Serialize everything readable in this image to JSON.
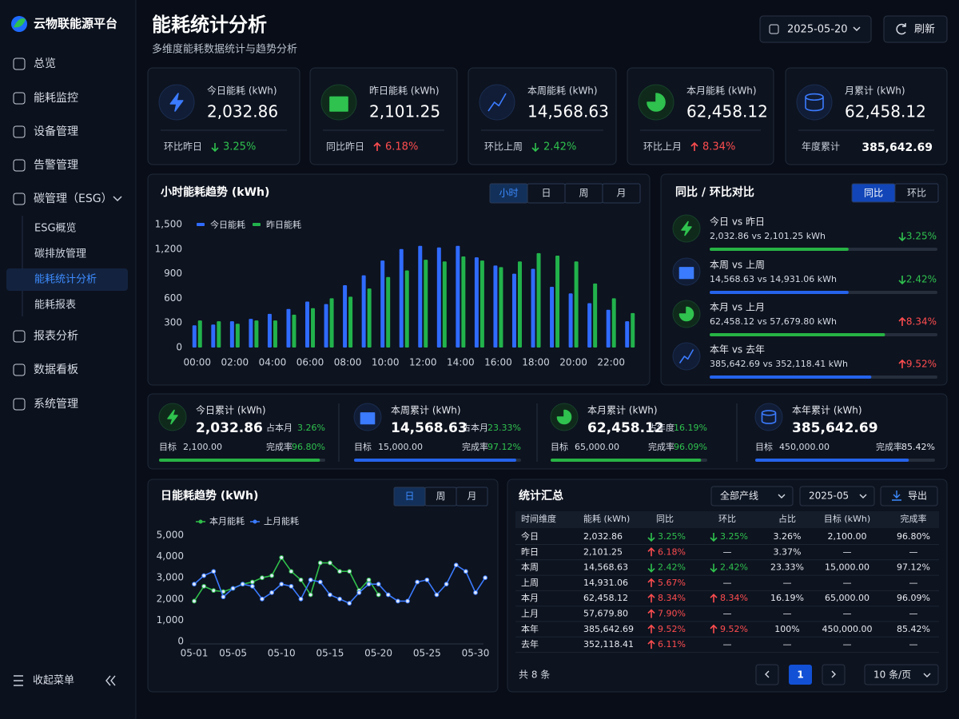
{
  "sidebar": {
    "brand": "云物联能源平台",
    "menu": [
      "总览",
      "能耗监控",
      "设备管理",
      "告警管理",
      "碳管理（ESG）"
    ],
    "submenu": [
      "ESG概览",
      "碳排放管理",
      "能耗统计分析",
      "能耗报表"
    ],
    "menu2": [
      "报表分析",
      "数据看板",
      "系统管理"
    ],
    "collapse": "收起菜单"
  },
  "header": {
    "title": "能耗统计分析",
    "subtitle": "多维度能耗数据统计与趋势分析",
    "date": "2025-05-20",
    "refresh": "刷新"
  },
  "kpis": [
    {
      "label": "今日能耗 (kWh)",
      "value": "2,032.86",
      "compare_label": "环比昨日",
      "change": "3.25%",
      "direction": "down"
    },
    {
      "label": "昨日能耗 (kWh)",
      "value": "2,101.25",
      "compare_label": "同比昨日",
      "change": "6.18%",
      "direction": "up"
    },
    {
      "label": "本周能耗 (kWh)",
      "value": "14,568.63",
      "compare_label": "环比上周",
      "change": "2.42%",
      "direction": "down"
    },
    {
      "label": "本月能耗 (kWh)",
      "value": "62,458.12",
      "compare_label": "环比上月",
      "change": "8.34%",
      "direction": "up"
    },
    {
      "label": "月累计 (kWh)",
      "value": "62,458.12",
      "compare_label": "年度累计",
      "total": "385,642.69"
    }
  ],
  "comparison": {
    "title": "同比 / 环比对比",
    "tabs": [
      "同比",
      "环比"
    ],
    "items": [
      {
        "label": "今日 vs 昨日",
        "detail": "2,032.86 vs 2,101.25 kWh",
        "change": "3.25%",
        "direction": "down",
        "progress": 61,
        "color": "#27b344"
      },
      {
        "label": "本周 vs 上周",
        "detail": "14,568.63 vs 14,931.06 kWh",
        "change": "2.42%",
        "direction": "down",
        "progress": 61,
        "color": "#2563eb"
      },
      {
        "label": "本月 vs 上月",
        "detail": "62,458.12 vs 57,679.80 kWh",
        "change": "8.34%",
        "direction": "up",
        "progress": 77,
        "color": "#27b344"
      },
      {
        "label": "本年 vs 去年",
        "detail": "385,642.69 vs 352,118.41 kWh",
        "change": "9.52%",
        "direction": "up",
        "progress": 71,
        "color": "#2563eb"
      }
    ]
  },
  "targets": [
    {
      "label": "今日累计 (kWh)",
      "value": "2,032.86",
      "share_label": "占本月",
      "share": "3.26%",
      "target_label": "目标",
      "target": "2,100.00",
      "rate_label": "完成率",
      "rate": "96.80%",
      "progress": 96.8,
      "color": "#27b344",
      "rate_color": "#2fc24e"
    },
    {
      "label": "本周累计 (kWh)",
      "value": "14,568.63",
      "share_label": "占本月",
      "share": "23.33%",
      "target_label": "目标",
      "target": "15,000.00",
      "rate_label": "完成率",
      "rate": "97.12%",
      "progress": 97.12,
      "color": "#2563eb",
      "rate_color": "#2fc24e"
    },
    {
      "label": "本月累计 (kWh)",
      "value": "62,458.12",
      "share_label": "占年度",
      "share": "16.19%",
      "target_label": "目标",
      "target": "65,000.00",
      "rate_label": "完成率",
      "rate": "96.09%",
      "progress": 96.09,
      "color": "#27b344",
      "rate_color": "#2fc24e"
    },
    {
      "label": "本年累计 (kWh)",
      "value": "385,642.69",
      "target_label": "目标",
      "target": "450,000.00",
      "rate_label": "完成率",
      "rate": "85.42%",
      "progress": 85.42,
      "color": "#2563eb",
      "rate_color": "#e6e9ef"
    }
  ],
  "table": {
    "title": "统计汇总",
    "filters": [
      "全部产线",
      "2025-05"
    ],
    "export": "导出",
    "columns": [
      "时间维度",
      "能耗 (kWh)",
      "同比",
      "环比",
      "占比",
      "目标 (kWh)",
      "完成率"
    ],
    "rows": [
      [
        "今日",
        "2,032.86",
        {
          "text": "3.25%",
          "direction": "down"
        },
        {
          "text": "3.25%",
          "direction": "down"
        },
        "3.26%",
        "2,100.00",
        "96.80%"
      ],
      [
        "昨日",
        "2,101.25",
        {
          "text": "6.18%",
          "direction": "up"
        },
        "—",
        "3.37%",
        "—",
        "—"
      ],
      [
        "本周",
        "14,568.63",
        {
          "text": "2.42%",
          "direction": "down"
        },
        {
          "text": "2.42%",
          "direction": "down"
        },
        "23.33%",
        "15,000.00",
        "97.12%"
      ],
      [
        "上周",
        "14,931.06",
        {
          "text": "5.67%",
          "direction": "up"
        },
        "—",
        "—",
        "—",
        "—"
      ],
      [
        "本月",
        "62,458.12",
        {
          "text": "8.34%",
          "direction": "up"
        },
        {
          "text": "8.34%",
          "direction": "up"
        },
        "16.19%",
        "65,000.00",
        "96.09%"
      ],
      [
        "上月",
        "57,679.80",
        {
          "text": "7.90%",
          "direction": "up"
        },
        "—",
        "—",
        "—",
        "—"
      ],
      [
        "本年",
        "385,642.69",
        {
          "text": "9.52%",
          "direction": "up"
        },
        {
          "text": "9.52%",
          "direction": "up"
        },
        "100%",
        "450,000.00",
        "85.42%"
      ],
      [
        "去年",
        "352,118.41",
        {
          "text": "6.11%",
          "direction": "up"
        },
        "—",
        "—",
        "—",
        "—"
      ]
    ],
    "total": "共 8 条",
    "page": "1",
    "page_size": "10 条/页"
  },
  "chart_data": [
    {
      "type": "bar",
      "title": "小时能耗趋势 (kWh)",
      "tabs": [
        "小时",
        "日",
        "周",
        "月"
      ],
      "categories": [
        "00:00",
        null,
        "02:00",
        null,
        "04:00",
        null,
        "06:00",
        null,
        "08:00",
        null,
        "10:00",
        null,
        "12:00",
        null,
        "14:00",
        null,
        "16:00",
        null,
        "18:00",
        null,
        "20:00",
        null,
        "22:00",
        null
      ],
      "series": [
        {
          "name": "今日能耗",
          "color": "#2f6bff",
          "values": [
            270,
            280,
            320,
            350,
            410,
            470,
            560,
            530,
            760,
            880,
            1060,
            1200,
            1240,
            1220,
            1240,
            1100,
            1000,
            900,
            960,
            740,
            660,
            540,
            460,
            320
          ]
        },
        {
          "name": "昨日能耗",
          "color": "#22b24c",
          "values": [
            330,
            320,
            290,
            330,
            330,
            400,
            480,
            600,
            620,
            720,
            860,
            940,
            1070,
            1050,
            1110,
            1060,
            980,
            1050,
            1150,
            1120,
            1050,
            780,
            600,
            420
          ]
        }
      ],
      "ylim": [
        0,
        1500
      ],
      "yticks": [
        0,
        300,
        600,
        900,
        {
          "value": 1200,
          "label": "1,200"
        },
        {
          "value": 1500,
          "label": "1,500"
        }
      ]
    },
    {
      "type": "line",
      "title": "日能耗趋势 (kWh)",
      "tabs": [
        "日",
        "周",
        "月"
      ],
      "categories": [
        "05-01",
        null,
        null,
        null,
        "05-05",
        null,
        null,
        null,
        null,
        "05-10",
        null,
        null,
        null,
        null,
        "05-15",
        null,
        null,
        null,
        null,
        "05-20",
        null,
        null,
        null,
        null,
        "05-25",
        null,
        null,
        null,
        null,
        "05-30",
        null
      ],
      "series": [
        {
          "name": "本月能耗",
          "color": "#2fbf4a",
          "values": [
            1900,
            2600,
            2400,
            2350,
            2500,
            2700,
            2800,
            3000,
            3100,
            3950,
            3300,
            2900,
            2200,
            3700,
            3700,
            3300,
            3300,
            2400,
            2900,
            2200,
            null,
            null,
            null,
            null,
            null,
            null,
            null,
            null,
            null,
            null,
            null
          ]
        },
        {
          "name": "上月能耗",
          "color": "#3b7bff",
          "values": [
            2700,
            3100,
            3300,
            2100,
            2500,
            2700,
            2600,
            2000,
            2300,
            2700,
            2600,
            2000,
            2900,
            2800,
            2200,
            2000,
            1800,
            2300,
            2700,
            2700,
            2200,
            1900,
            1900,
            2800,
            2900,
            2200,
            2700,
            3600,
            3300,
            2300,
            3000
          ]
        }
      ],
      "ylim": [
        0,
        5000
      ],
      "yticks": [
        0,
        {
          "value": 1000,
          "label": "1,000"
        },
        {
          "value": 2000,
          "label": "2,000"
        },
        {
          "value": 3000,
          "label": "3,000"
        },
        {
          "value": 4000,
          "label": "4,000"
        },
        {
          "value": 5000,
          "label": "5,000"
        }
      ]
    }
  ]
}
